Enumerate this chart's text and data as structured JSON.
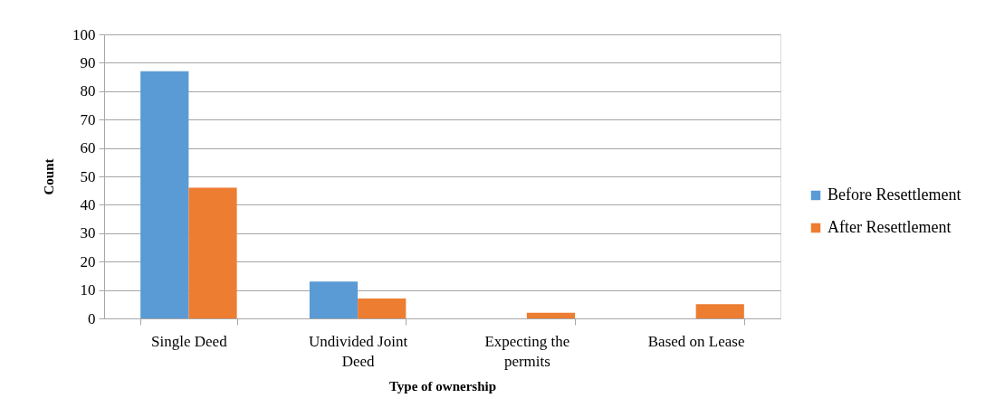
{
  "chart_data": {
    "type": "bar",
    "xlabel": "Type of ownership",
    "ylabel": "Count",
    "categories": [
      "Single Deed",
      "Undivided Joint Deed",
      "Expecting the permits",
      "Based on Lease"
    ],
    "series": [
      {
        "name": "Before Resettlement",
        "color": "#5b9bd5",
        "values": [
          87,
          13,
          0,
          0
        ]
      },
      {
        "name": "After Resettlement",
        "color": "#ed7d31",
        "values": [
          46,
          7,
          2,
          5
        ]
      }
    ],
    "ylim": [
      0,
      100
    ],
    "yticks": [
      0,
      10,
      20,
      30,
      40,
      50,
      60,
      70,
      80,
      90,
      100
    ],
    "grid": "y",
    "legend": "right"
  }
}
